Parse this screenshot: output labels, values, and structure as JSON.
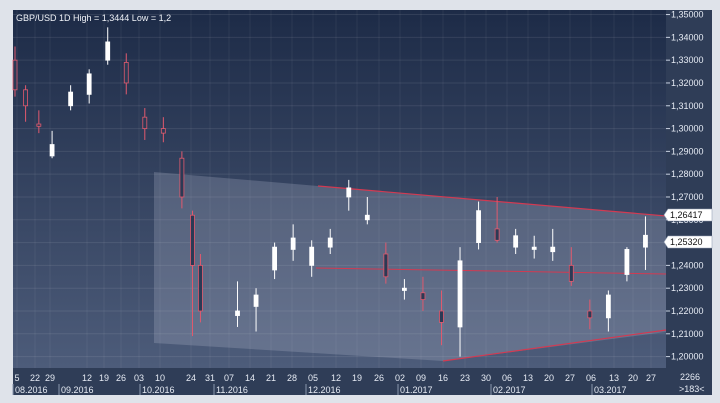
{
  "chart_data": {
    "type": "candlestick",
    "title": "GBP/USD 1D High = 1,3444 Low = 1,2",
    "ylim": [
      1.195,
      1.352
    ],
    "y_ticks": [
      "1,35000",
      "1,34000",
      "1,33000",
      "1,32000",
      "1,31000",
      "1,30000",
      "1,29000",
      "1,28000",
      "1,27000",
      "1,26000",
      "1,25000",
      "1,24000",
      "1,23000",
      "1,22000",
      "1,21000",
      "1,20000"
    ],
    "x_ticks": [
      "5",
      "22",
      "29",
      "12",
      "19",
      "26",
      "03",
      "10",
      "24",
      "31",
      "07",
      "14",
      "21",
      "28",
      "05",
      "12",
      "19",
      "26",
      "02",
      "09",
      "16",
      "23",
      "30",
      "06",
      "13",
      "20",
      "27",
      "06",
      "13",
      "20",
      "27"
    ],
    "month_labels": [
      "08.2016",
      "09.2016",
      "10.2016",
      "11.2016",
      "12.2016",
      "01.2017",
      "02.2017",
      "03.2017"
    ],
    "price_badges": [
      "1,26417",
      "1,25320"
    ],
    "corner_count": "2266",
    "corner_nav": ">183<",
    "grid": true,
    "colors": {
      "background_top": "#1d2b47",
      "background_bottom": "#4d5c7a",
      "bull": "#ffffff",
      "bear": "#e15a6e",
      "trendline": "#d23a52",
      "triangle_fill": "#c8cfe0",
      "axis_panel": "#2f3d57"
    },
    "series": [
      {
        "values": [
          {
            "date": "2016-08-01",
            "open": 1.33,
            "high": 1.336,
            "low": 1.314,
            "close": 1.317
          },
          {
            "date": "2016-08-05",
            "open": 1.317,
            "high": 1.319,
            "low": 1.303,
            "close": 1.31
          },
          {
            "date": "2016-08-10",
            "open": 1.302,
            "high": 1.308,
            "low": 1.298,
            "close": 1.301
          },
          {
            "date": "2016-08-15",
            "open": 1.288,
            "high": 1.299,
            "low": 1.287,
            "close": 1.293
          },
          {
            "date": "2016-08-22",
            "open": 1.31,
            "high": 1.319,
            "low": 1.308,
            "close": 1.316
          },
          {
            "date": "2016-08-29",
            "open": 1.315,
            "high": 1.326,
            "low": 1.311,
            "close": 1.324
          },
          {
            "date": "2016-09-05",
            "open": 1.33,
            "high": 1.3444,
            "low": 1.328,
            "close": 1.338
          },
          {
            "date": "2016-09-12",
            "open": 1.329,
            "high": 1.333,
            "low": 1.315,
            "close": 1.32
          },
          {
            "date": "2016-09-19",
            "open": 1.305,
            "high": 1.309,
            "low": 1.295,
            "close": 1.3
          },
          {
            "date": "2016-09-26",
            "open": 1.3,
            "high": 1.305,
            "low": 1.294,
            "close": 1.298
          },
          {
            "date": "2016-10-03",
            "open": 1.287,
            "high": 1.29,
            "low": 1.265,
            "close": 1.27
          },
          {
            "date": "2016-10-07",
            "open": 1.262,
            "high": 1.264,
            "low": 1.209,
            "close": 1.24
          },
          {
            "date": "2016-10-10",
            "open": 1.24,
            "high": 1.245,
            "low": 1.215,
            "close": 1.22
          },
          {
            "date": "2016-10-24",
            "open": 1.218,
            "high": 1.233,
            "low": 1.213,
            "close": 1.22
          },
          {
            "date": "2016-10-31",
            "open": 1.222,
            "high": 1.23,
            "low": 1.211,
            "close": 1.227
          },
          {
            "date": "2016-11-07",
            "open": 1.238,
            "high": 1.25,
            "low": 1.234,
            "close": 1.248
          },
          {
            "date": "2016-11-14",
            "open": 1.247,
            "high": 1.258,
            "low": 1.242,
            "close": 1.252
          },
          {
            "date": "2016-11-21",
            "open": 1.24,
            "high": 1.251,
            "low": 1.235,
            "close": 1.248
          },
          {
            "date": "2016-11-28",
            "open": 1.248,
            "high": 1.256,
            "low": 1.245,
            "close": 1.252
          },
          {
            "date": "2016-12-05",
            "open": 1.27,
            "high": 1.2775,
            "low": 1.264,
            "close": 1.274
          },
          {
            "date": "2016-12-12",
            "open": 1.26,
            "high": 1.27,
            "low": 1.258,
            "close": 1.262
          },
          {
            "date": "2016-12-19",
            "open": 1.245,
            "high": 1.25,
            "low": 1.232,
            "close": 1.235
          },
          {
            "date": "2016-12-26",
            "open": 1.229,
            "high": 1.234,
            "low": 1.225,
            "close": 1.23
          },
          {
            "date": "2017-01-02",
            "open": 1.228,
            "high": 1.235,
            "low": 1.22,
            "close": 1.225
          },
          {
            "date": "2017-01-09",
            "open": 1.22,
            "high": 1.229,
            "low": 1.205,
            "close": 1.215
          },
          {
            "date": "2017-01-16",
            "open": 1.213,
            "high": 1.248,
            "low": 1.2,
            "close": 1.242
          },
          {
            "date": "2017-01-23",
            "open": 1.25,
            "high": 1.268,
            "low": 1.247,
            "close": 1.264
          },
          {
            "date": "2017-01-30",
            "open": 1.256,
            "high": 1.27,
            "low": 1.25,
            "close": 1.251
          },
          {
            "date": "2017-02-06",
            "open": 1.248,
            "high": 1.256,
            "low": 1.245,
            "close": 1.253
          },
          {
            "date": "2017-02-13",
            "open": 1.247,
            "high": 1.253,
            "low": 1.243,
            "close": 1.248
          },
          {
            "date": "2017-02-20",
            "open": 1.246,
            "high": 1.256,
            "low": 1.242,
            "close": 1.248
          },
          {
            "date": "2017-02-27",
            "open": 1.24,
            "high": 1.248,
            "low": 1.231,
            "close": 1.233
          },
          {
            "date": "2017-03-06",
            "open": 1.22,
            "high": 1.225,
            "low": 1.212,
            "close": 1.217
          },
          {
            "date": "2017-03-13",
            "open": 1.217,
            "high": 1.229,
            "low": 1.211,
            "close": 1.227
          },
          {
            "date": "2017-03-20",
            "open": 1.236,
            "high": 1.248,
            "low": 1.233,
            "close": 1.247
          },
          {
            "date": "2017-03-27",
            "open": 1.248,
            "high": 1.2615,
            "low": 1.238,
            "close": 1.2532
          }
        ]
      }
    ]
  }
}
